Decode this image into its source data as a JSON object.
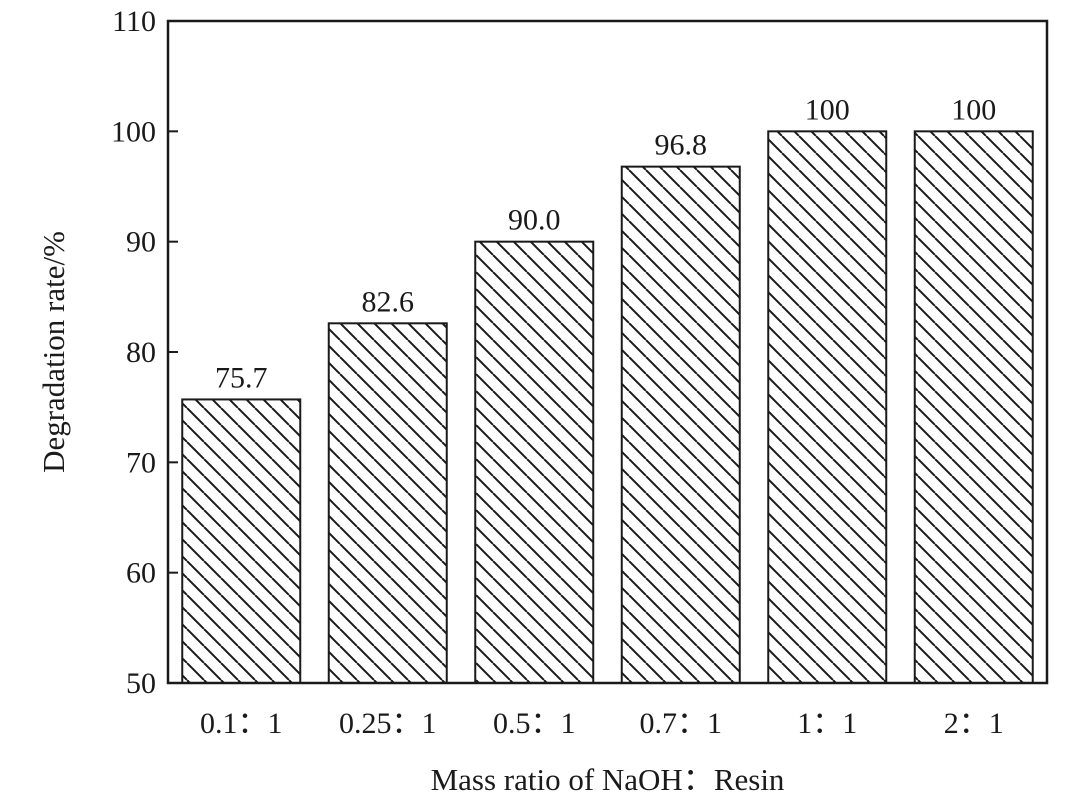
{
  "chart_data": {
    "type": "bar",
    "title": "",
    "xlabel": "Mass ratio of NaOH：Resin",
    "ylabel": "Degradation rate/%",
    "categories": [
      "0.1：1",
      "0.25：1",
      "0.5：1",
      "0.7：1",
      "1：1",
      "2：1"
    ],
    "values": [
      75.7,
      82.6,
      90.0,
      96.8,
      100,
      100
    ],
    "value_labels": [
      "75.7",
      "82.6",
      "90.0",
      "96.8",
      "100",
      "100"
    ],
    "ylim": [
      50,
      110
    ],
    "yticks": [
      50,
      60,
      70,
      80,
      90,
      100,
      110
    ],
    "grid": false,
    "bar_fill": "diagonal-hatch",
    "colors": {
      "bar_stroke": "#1a1a1a",
      "hatch": "#1a1a1a",
      "background": "#ffffff"
    }
  }
}
